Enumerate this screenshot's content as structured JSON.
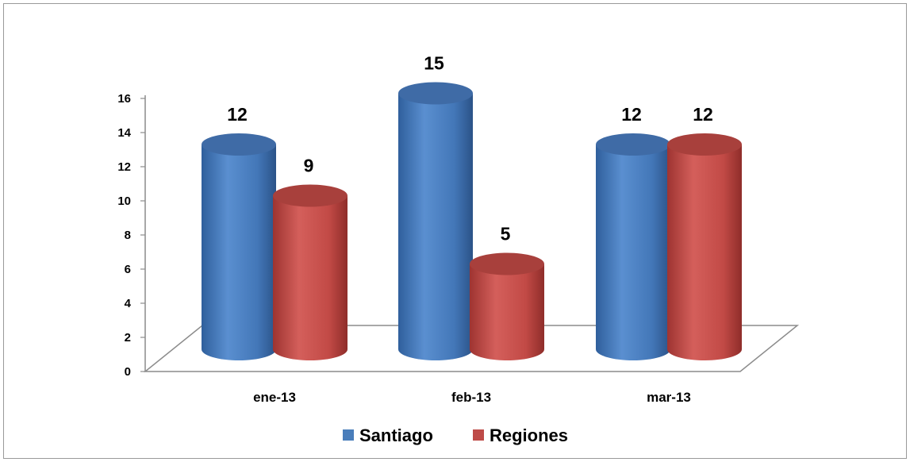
{
  "chart_data": {
    "type": "bar",
    "style": "3d-cylinder",
    "categories": [
      "ene-13",
      "feb-13",
      "mar-13"
    ],
    "series": [
      {
        "name": "Santiago",
        "values": [
          12,
          15,
          12
        ],
        "color": "#4a7ebb"
      },
      {
        "name": "Regiones",
        "values": [
          9,
          5,
          12
        ],
        "color": "#be4b48"
      }
    ],
    "ylim": [
      0,
      16
    ],
    "yticks": [
      "0",
      "2",
      "4",
      "6",
      "8",
      "10",
      "12",
      "14",
      "16"
    ],
    "legend": "bottom",
    "grid": false
  }
}
